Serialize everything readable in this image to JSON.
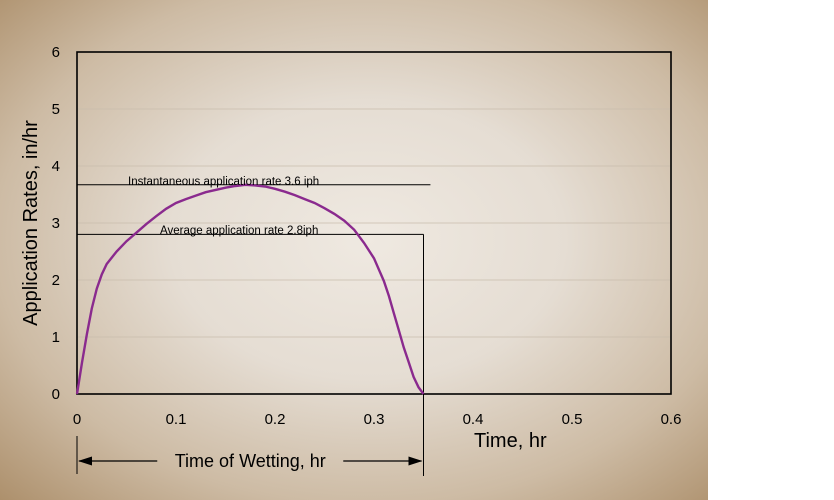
{
  "chart_data": {
    "type": "line",
    "title": "",
    "xlabel": "Time, hr",
    "ylabel": "Application Rates, in/hr",
    "xlim": [
      0,
      0.6
    ],
    "ylim": [
      0,
      6
    ],
    "x_ticks": [
      "0",
      "0.1",
      "0.2",
      "0.3",
      "0.4",
      "0.5",
      "0.6"
    ],
    "y_ticks": [
      "0",
      "1",
      "2",
      "3",
      "4",
      "5",
      "6"
    ],
    "grid": "horizontal",
    "series": [
      {
        "name": "Application rate",
        "color": "#8a2a8e",
        "x": [
          0,
          0.005,
          0.01,
          0.015,
          0.02,
          0.025,
          0.03,
          0.04,
          0.05,
          0.06,
          0.07,
          0.08,
          0.09,
          0.1,
          0.11,
          0.12,
          0.13,
          0.14,
          0.15,
          0.16,
          0.17,
          0.18,
          0.19,
          0.2,
          0.21,
          0.22,
          0.23,
          0.24,
          0.25,
          0.26,
          0.27,
          0.28,
          0.29,
          0.3,
          0.31,
          0.315,
          0.32,
          0.325,
          0.33,
          0.335,
          0.34,
          0.345,
          0.35
        ],
        "y": [
          0,
          0.55,
          1.05,
          1.5,
          1.85,
          2.1,
          2.28,
          2.5,
          2.68,
          2.83,
          2.98,
          3.12,
          3.25,
          3.35,
          3.42,
          3.48,
          3.54,
          3.58,
          3.62,
          3.65,
          3.67,
          3.66,
          3.64,
          3.6,
          3.55,
          3.49,
          3.42,
          3.35,
          3.26,
          3.16,
          3.04,
          2.88,
          2.65,
          2.38,
          1.98,
          1.72,
          1.42,
          1.12,
          0.82,
          0.56,
          0.3,
          0.12,
          0
        ]
      }
    ],
    "annotations": [
      {
        "text": "Instantaneous application rate 3.6 iph",
        "y": 3.67,
        "x_end": 0.357
      },
      {
        "text": "Average application rate 2.8iph",
        "y": 2.8,
        "x_end": 0.35
      }
    ],
    "span": {
      "label": "Time of Wetting, hr",
      "x_start": 0,
      "x_end": 0.35
    }
  }
}
